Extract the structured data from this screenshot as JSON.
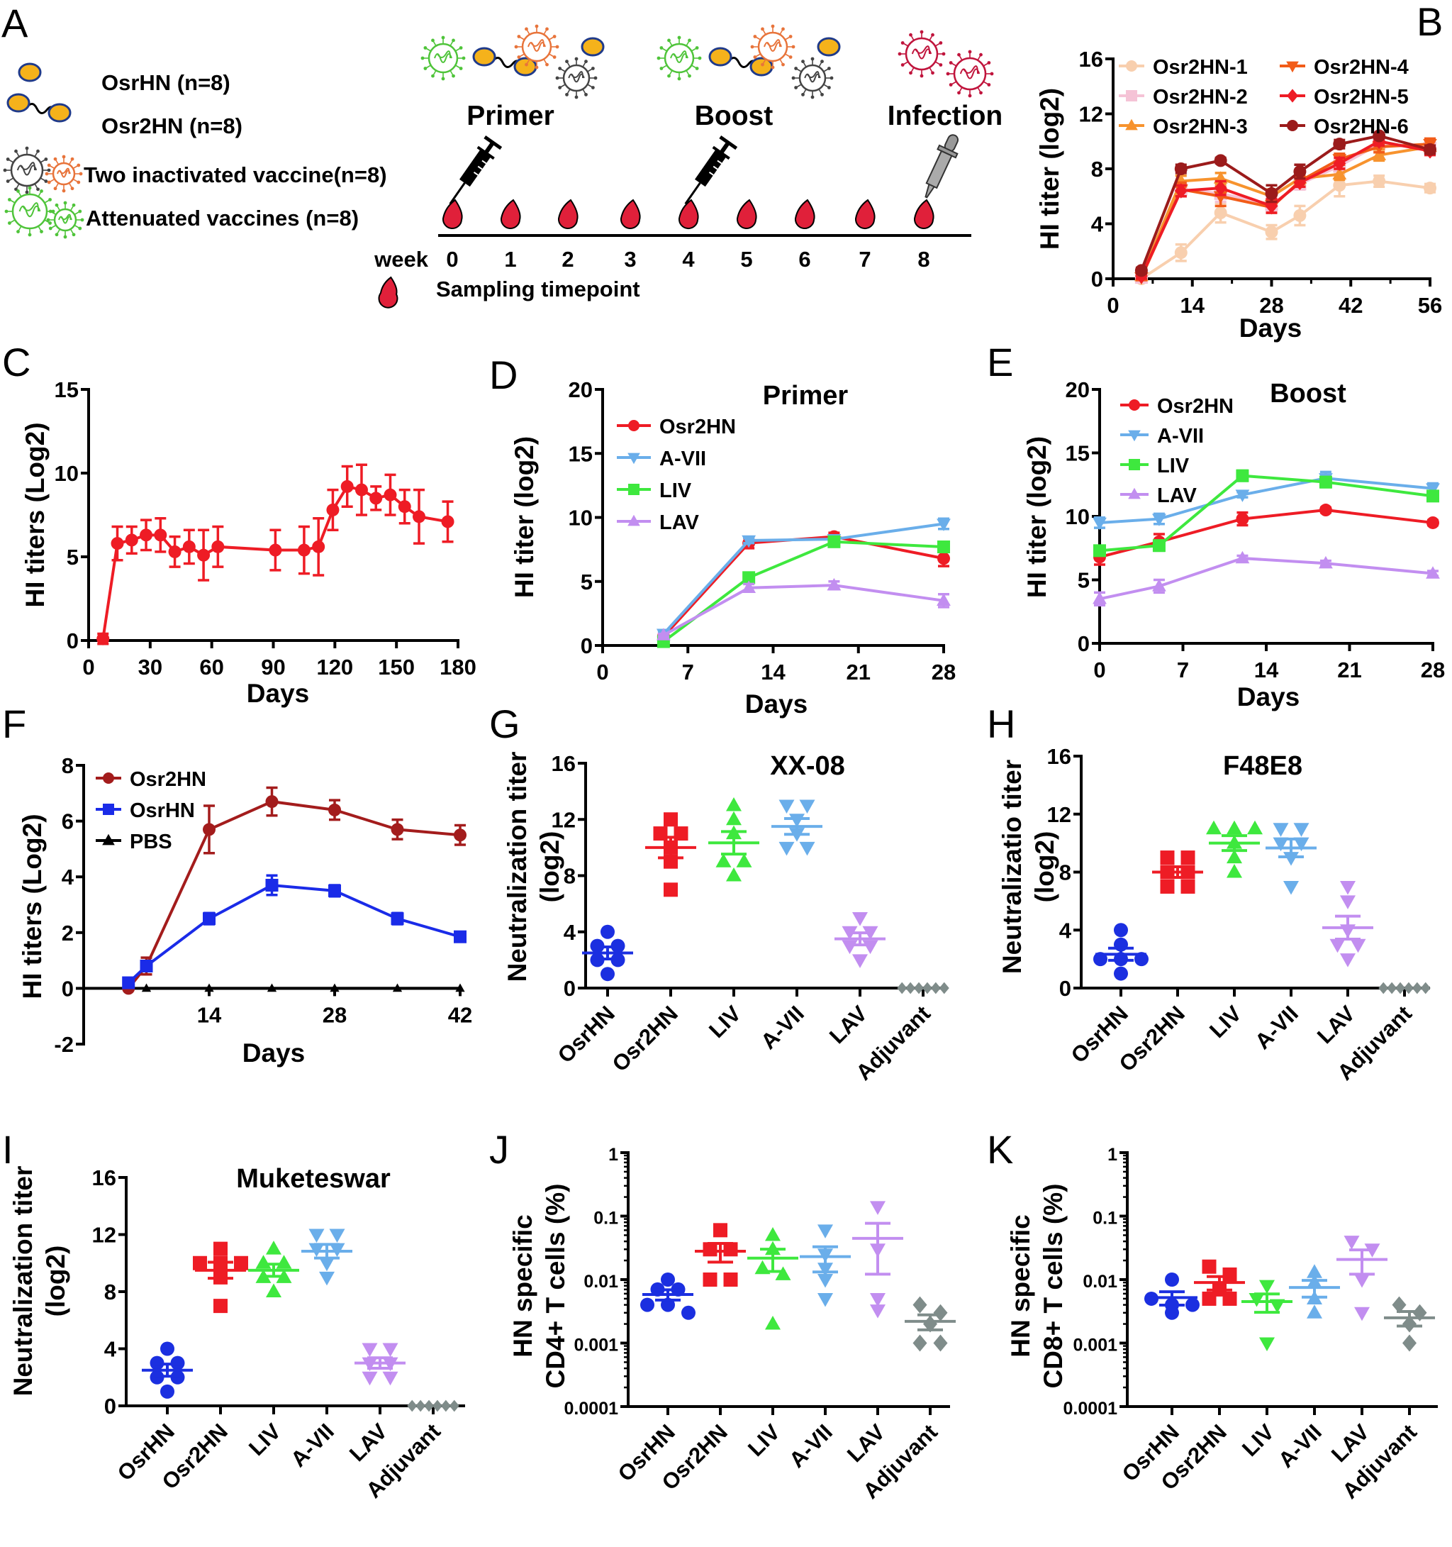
{
  "schematic": {
    "panel": "A",
    "legend": [
      {
        "label": "OsrHN (n=8)",
        "icon": "single-particle-icon"
      },
      {
        "label": "Osr2HN (n=8)",
        "icon": "double-particle-icon"
      },
      {
        "label": "Two inactivated  vaccine(n=8)",
        "icon": "inactivated-virus-icon"
      },
      {
        "label": "Attenuated vaccines (n=8)",
        "icon": "attenuated-virus-icon"
      }
    ],
    "phases": [
      {
        "label": "Primer",
        "icon": "syringe-icon"
      },
      {
        "label": "Boost",
        "icon": "syringe-icon"
      },
      {
        "label": "Infection",
        "icon": "dropper-icon"
      }
    ],
    "week_label": "week",
    "weeks": [
      0,
      1,
      2,
      3,
      4,
      5,
      6,
      7,
      8
    ],
    "sampling_label": "Sampling timepoint",
    "colors": {
      "particle": "#f5b21b",
      "particle_outline": "#1f3a8a",
      "drop": "#e0203a",
      "inactivated_1": "#444444",
      "inactivated_2": "#e8743b",
      "attenuated": "#4fc43a",
      "challenge": "#c0143c"
    }
  },
  "chart_data": [
    {
      "panel": "B",
      "type": "line",
      "xlabel": "Days",
      "ylabel": "HI titer (log2)",
      "xlim": [
        0,
        56
      ],
      "ylim": [
        0,
        16
      ],
      "xticks": [
        0,
        14,
        28,
        42,
        56
      ],
      "yticks": [
        0,
        4,
        8,
        12,
        16
      ],
      "legend": "top, two columns",
      "x": [
        5,
        12,
        19,
        28,
        33,
        40,
        47,
        56
      ],
      "series": [
        {
          "name": "Osr2HN-1",
          "color": "#f8cfae",
          "marker": "circle",
          "values": [
            0,
            1.9,
            4.8,
            3.4,
            4.6,
            6.8,
            7.1,
            6.6
          ],
          "err": [
            0.2,
            0.6,
            0.7,
            0.5,
            0.7,
            0.8,
            0.4,
            0.3
          ]
        },
        {
          "name": "Osr2HN-2",
          "color": "#f5c3d6",
          "marker": "square",
          "values": [
            0.1,
            6.5,
            6.2,
            5.4,
            6.9,
            8.2,
            9.8,
            9.5
          ],
          "err": [
            0.2,
            0.5,
            0.6,
            0.5,
            0.4,
            0.4,
            0.4,
            0.4
          ]
        },
        {
          "name": "Osr2HN-3",
          "color": "#f7932e",
          "marker": "triangle-up",
          "values": [
            0.2,
            7.1,
            7.3,
            6.0,
            7.3,
            7.6,
            9.0,
            9.6
          ],
          "err": [
            0.2,
            0.4,
            0.4,
            0.5,
            0.4,
            0.4,
            0.4,
            0.5
          ]
        },
        {
          "name": "Osr2HN-4",
          "color": "#f25c18",
          "marker": "triangle-down",
          "values": [
            0.1,
            6.5,
            6.0,
            5.2,
            7.1,
            8.7,
            9.6,
            9.8
          ],
          "err": [
            0.2,
            0.5,
            0.7,
            0.4,
            0.4,
            0.4,
            0.4,
            0.4
          ]
        },
        {
          "name": "Osr2HN-5",
          "color": "#ee1c25",
          "marker": "diamond",
          "values": [
            0.2,
            6.4,
            6.6,
            5.3,
            7.0,
            8.4,
            10.0,
            9.3
          ],
          "err": [
            0.2,
            0.4,
            0.5,
            0.5,
            0.3,
            0.4,
            0.3,
            0.3
          ]
        },
        {
          "name": "Osr2HN-6",
          "color": "#9b1b1b",
          "marker": "circle",
          "values": [
            0.6,
            8.0,
            8.6,
            6.2,
            7.8,
            9.8,
            10.4,
            9.4
          ],
          "err": [
            0.2,
            0.3,
            0.2,
            0.6,
            0.5,
            0.3,
            0.2,
            0.3
          ]
        }
      ]
    },
    {
      "panel": "C",
      "type": "line",
      "xlabel": "Days",
      "ylabel": "HI titers (Log2)",
      "xlim": [
        0,
        180
      ],
      "ylim": [
        0,
        15
      ],
      "xticks": [
        0,
        30,
        60,
        90,
        120,
        150,
        180
      ],
      "yticks": [
        0,
        5,
        10,
        15
      ],
      "x": [
        7,
        14,
        21,
        28,
        35,
        42,
        49,
        56,
        63,
        91,
        105,
        112,
        119,
        126,
        133,
        140,
        147,
        154,
        161,
        175
      ],
      "series": [
        {
          "color": "#ee1c25",
          "marker": "circle",
          "values": [
            0.1,
            5.8,
            6.0,
            6.3,
            6.3,
            5.3,
            5.6,
            5.1,
            5.6,
            5.4,
            5.4,
            5.6,
            7.8,
            9.2,
            9.0,
            8.5,
            8.7,
            8.0,
            7.4,
            7.1
          ],
          "err": [
            0.3,
            1.0,
            0.8,
            0.9,
            1.0,
            0.9,
            1.0,
            1.5,
            1.2,
            1.2,
            1.4,
            1.7,
            1.2,
            1.2,
            1.5,
            0.7,
            1.2,
            1.0,
            1.6,
            1.2
          ]
        }
      ]
    },
    {
      "panel": "D",
      "type": "line",
      "title": "Primer",
      "xlabel": "Days",
      "ylabel": "HI titer (log2)",
      "xlim": [
        0,
        28
      ],
      "ylim": [
        0,
        20
      ],
      "xticks": [
        0,
        7,
        14,
        21,
        28
      ],
      "yticks": [
        0,
        5,
        10,
        15,
        20
      ],
      "legend": "top-left",
      "x": [
        5,
        12,
        19,
        28
      ],
      "series": [
        {
          "name": "Osr2HN",
          "color": "#ee1c25",
          "marker": "circle",
          "values": [
            0.7,
            8.0,
            8.5,
            6.8
          ],
          "err": [
            0.2,
            0.4,
            0.3,
            0.6
          ]
        },
        {
          "name": "A-VII",
          "color": "#6aaeea",
          "marker": "triangle-down",
          "values": [
            0.9,
            8.2,
            8.3,
            9.5
          ],
          "err": [
            0.2,
            0.2,
            0.2,
            0.4
          ]
        },
        {
          "name": "LIV",
          "color": "#3ee83e",
          "marker": "square",
          "values": [
            0.3,
            5.3,
            8.1,
            7.7
          ],
          "err": [
            0.2,
            0.3,
            0.2,
            0.2
          ]
        },
        {
          "name": "LAV",
          "color": "#c28ef0",
          "marker": "triangle-up",
          "values": [
            0.8,
            4.5,
            4.7,
            3.5
          ],
          "err": [
            0.1,
            0.3,
            0.3,
            0.5
          ]
        }
      ]
    },
    {
      "panel": "E",
      "type": "line",
      "title": "Boost",
      "xlabel": "Days",
      "ylabel": "HI titer (log2)",
      "xlim": [
        0,
        28
      ],
      "ylim": [
        0,
        20
      ],
      "xticks": [
        0,
        7,
        14,
        21,
        28
      ],
      "yticks": [
        0,
        5,
        10,
        15,
        20
      ],
      "legend": "top-left",
      "x": [
        0,
        5,
        12,
        19,
        28
      ],
      "series": [
        {
          "name": "Osr2HN",
          "color": "#ee1c25",
          "marker": "circle",
          "values": [
            6.8,
            8.0,
            9.8,
            10.5,
            9.5
          ],
          "err": [
            0.6,
            0.6,
            0.5,
            0.2,
            0.2
          ]
        },
        {
          "name": "A-VII",
          "color": "#6aaeea",
          "marker": "triangle-down",
          "values": [
            9.5,
            9.8,
            11.7,
            13.0,
            12.2
          ],
          "err": [
            0.4,
            0.4,
            0.2,
            0.5,
            0.4
          ]
        },
        {
          "name": "LIV",
          "color": "#3ee83e",
          "marker": "square",
          "values": [
            7.3,
            7.7,
            13.2,
            12.7,
            11.6
          ],
          "err": [
            0.3,
            0.4,
            0.4,
            0.4,
            0.3
          ]
        },
        {
          "name": "LAV",
          "color": "#c28ef0",
          "marker": "triangle-up",
          "values": [
            3.5,
            4.5,
            6.7,
            6.3,
            5.5
          ],
          "err": [
            0.5,
            0.5,
            0.2,
            0.2,
            0.2
          ]
        }
      ]
    },
    {
      "panel": "F",
      "type": "line",
      "xlabel": "Days",
      "ylabel": "HI titers (Log2)",
      "xlim": [
        0,
        42
      ],
      "ylim": [
        -2,
        8
      ],
      "xticks": [
        14,
        28,
        42
      ],
      "yticks": [
        -2,
        0,
        2,
        4,
        6,
        8
      ],
      "legend": "top-left",
      "x": [
        5,
        7,
        14,
        21,
        28,
        35,
        42
      ],
      "series": [
        {
          "name": "Osr2HN",
          "color": "#a31c1c",
          "marker": "circle",
          "values": [
            0,
            0.8,
            5.7,
            6.7,
            6.4,
            5.7,
            5.5
          ],
          "err": [
            0.05,
            0.3,
            0.85,
            0.5,
            0.35,
            0.35,
            0.35
          ]
        },
        {
          "name": "OsrHN",
          "color": "#1a2be8",
          "marker": "square",
          "values": [
            0.2,
            0.8,
            2.5,
            3.7,
            3.5,
            2.5,
            1.85
          ],
          "err": [
            0.05,
            0.1,
            0.2,
            0.35,
            0.2,
            0.2,
            0.1
          ]
        },
        {
          "name": "PBS",
          "color": "#000000",
          "marker": "triangle-up",
          "values": [
            null,
            0,
            0,
            0,
            0,
            0,
            0
          ],
          "err": [
            0,
            0,
            0,
            0,
            0,
            0,
            0
          ]
        }
      ]
    },
    {
      "panel": "G",
      "type": "scatter",
      "title": "XX-08",
      "ylabel_lines": [
        "Neutralization titer",
        "(log2)"
      ],
      "ylim": [
        0,
        16
      ],
      "yticks": [
        0,
        4,
        8,
        12,
        16
      ],
      "categories": [
        "OsrHN",
        "Osr2HN",
        "LIV",
        "A-VII",
        "LAV",
        "Adjuvant"
      ],
      "groups": [
        {
          "color": "#1b2fe0",
          "marker": "circle",
          "values": [
            4,
            3,
            3,
            2,
            2,
            1
          ]
        },
        {
          "color": "#ee1c25",
          "marker": "square",
          "values": [
            12,
            11,
            11,
            10,
            9,
            7
          ]
        },
        {
          "color": "#3ee83e",
          "marker": "triangle-up",
          "values": [
            13,
            12,
            11,
            9,
            9,
            8
          ]
        },
        {
          "color": "#6aaeea",
          "marker": "triangle-down",
          "values": [
            13,
            13,
            12,
            11,
            10,
            10
          ]
        },
        {
          "color": "#c28ef0",
          "marker": "triangle-down",
          "values": [
            5,
            4,
            4,
            3,
            3,
            2
          ]
        },
        {
          "color": "#7f8c8a",
          "marker": "diamond",
          "values": [
            0,
            0,
            0,
            0,
            0,
            0
          ]
        }
      ]
    },
    {
      "panel": "H",
      "type": "scatter",
      "title": "F48E8",
      "ylabel_lines": [
        "Neutralizatio titer",
        "(log2)"
      ],
      "ylim": [
        0,
        16
      ],
      "yticks": [
        0,
        4,
        8,
        12,
        16
      ],
      "categories": [
        "OsrHN",
        "Osr2HN",
        "LIV",
        "A-VII",
        "LAV",
        "Adjuvant"
      ],
      "groups": [
        {
          "color": "#1b2fe0",
          "marker": "circle",
          "values": [
            4,
            3,
            2,
            2,
            2,
            1
          ]
        },
        {
          "color": "#ee1c25",
          "marker": "square",
          "values": [
            9,
            9,
            8,
            8,
            7,
            7
          ]
        },
        {
          "color": "#3ee83e",
          "marker": "triangle-up",
          "values": [
            11,
            11,
            11,
            10,
            9,
            8
          ]
        },
        {
          "color": "#6aaeea",
          "marker": "triangle-down",
          "values": [
            11,
            11,
            10,
            10,
            9,
            7
          ]
        },
        {
          "color": "#c28ef0",
          "marker": "triangle-down",
          "values": [
            7,
            6,
            4,
            3,
            3,
            2
          ]
        },
        {
          "color": "#7f8c8a",
          "marker": "diamond",
          "values": [
            0,
            0,
            0,
            0,
            0,
            0
          ]
        }
      ]
    },
    {
      "panel": "I",
      "type": "scatter",
      "title": "Muketeswar",
      "ylabel_lines": [
        "Neutralization titer",
        "(log2)"
      ],
      "ylim": [
        0,
        16
      ],
      "yticks": [
        0,
        4,
        8,
        12,
        16
      ],
      "categories": [
        "OsrHN",
        "Osr2HN",
        "LIV",
        "A-VII",
        "LAV",
        "Adjuvant"
      ],
      "groups": [
        {
          "color": "#1b2fe0",
          "marker": "circle",
          "values": [
            4,
            3,
            3,
            2,
            2,
            1
          ]
        },
        {
          "color": "#ee1c25",
          "marker": "square",
          "values": [
            11,
            10,
            10,
            10,
            9,
            7
          ]
        },
        {
          "color": "#3ee83e",
          "marker": "triangle-up",
          "values": [
            11,
            10,
            10,
            9,
            9,
            8
          ]
        },
        {
          "color": "#6aaeea",
          "marker": "triangle-down",
          "values": [
            12,
            12,
            11,
            11,
            10,
            9
          ]
        },
        {
          "color": "#c28ef0",
          "marker": "triangle-down",
          "values": [
            4,
            4,
            3,
            3,
            2,
            2
          ]
        },
        {
          "color": "#7f8c8a",
          "marker": "diamond",
          "values": [
            0,
            0,
            0,
            0,
            0,
            0
          ]
        }
      ]
    },
    {
      "panel": "J",
      "type": "scatter",
      "yscale": "log",
      "ylabel_lines": [
        "HN specific",
        "CD4+ T cells (%)"
      ],
      "ylim": [
        0.0001,
        1
      ],
      "yticks": [
        0.0001,
        0.001,
        0.01,
        0.1,
        1
      ],
      "categories": [
        "OsrHN",
        "Osr2HN",
        "LIV",
        "A-VII",
        "LAV",
        "Adjuvant"
      ],
      "groups": [
        {
          "color": "#1b2fe0",
          "marker": "circle",
          "values": [
            0.01,
            0.007,
            0.007,
            0.004,
            0.004,
            0.003
          ]
        },
        {
          "color": "#ee1c25",
          "marker": "square",
          "values": [
            0.06,
            0.03,
            0.03,
            0.01,
            0.01
          ]
        },
        {
          "color": "#3ee83e",
          "marker": "triangle-up",
          "values": [
            0.05,
            0.03,
            0.015,
            0.012,
            0.002
          ]
        },
        {
          "color": "#6aaeea",
          "marker": "triangle-down",
          "values": [
            0.06,
            0.025,
            0.015,
            0.01,
            0.005
          ]
        },
        {
          "color": "#c28ef0",
          "marker": "triangle-down",
          "values": [
            0.14,
            0.03,
            0.005,
            0.0033
          ]
        },
        {
          "color": "#7f8c8a",
          "marker": "diamond",
          "values": [
            0.004,
            0.003,
            0.002,
            0.001,
            0.001
          ]
        }
      ]
    },
    {
      "panel": "K",
      "type": "scatter",
      "yscale": "log",
      "ylabel_lines": [
        "HN specific",
        "CD8+ T cells (%)"
      ],
      "ylim": [
        0.0001,
        1
      ],
      "yticks": [
        0.0001,
        0.001,
        0.01,
        0.1,
        1
      ],
      "categories": [
        "OsrHN",
        "Osr2HN",
        "LIV",
        "A-VII",
        "LAV",
        "Adjuvant"
      ],
      "groups": [
        {
          "color": "#1b2fe0",
          "marker": "circle",
          "values": [
            0.01,
            0.005,
            0.004,
            0.004,
            0.003
          ]
        },
        {
          "color": "#ee1c25",
          "marker": "square",
          "values": [
            0.016,
            0.012,
            0.007,
            0.005,
            0.005
          ]
        },
        {
          "color": "#3ee83e",
          "marker": "triangle-down",
          "values": [
            0.008,
            0.005,
            0.004,
            0.001
          ]
        },
        {
          "color": "#6aaeea",
          "marker": "triangle-up",
          "values": [
            0.013,
            0.009,
            0.005,
            0.003
          ]
        },
        {
          "color": "#c28ef0",
          "marker": "triangle-down",
          "values": [
            0.04,
            0.03,
            0.01,
            0.003
          ]
        },
        {
          "color": "#7f8c8a",
          "marker": "diamond",
          "values": [
            0.004,
            0.003,
            0.002,
            0.001
          ]
        }
      ]
    }
  ]
}
